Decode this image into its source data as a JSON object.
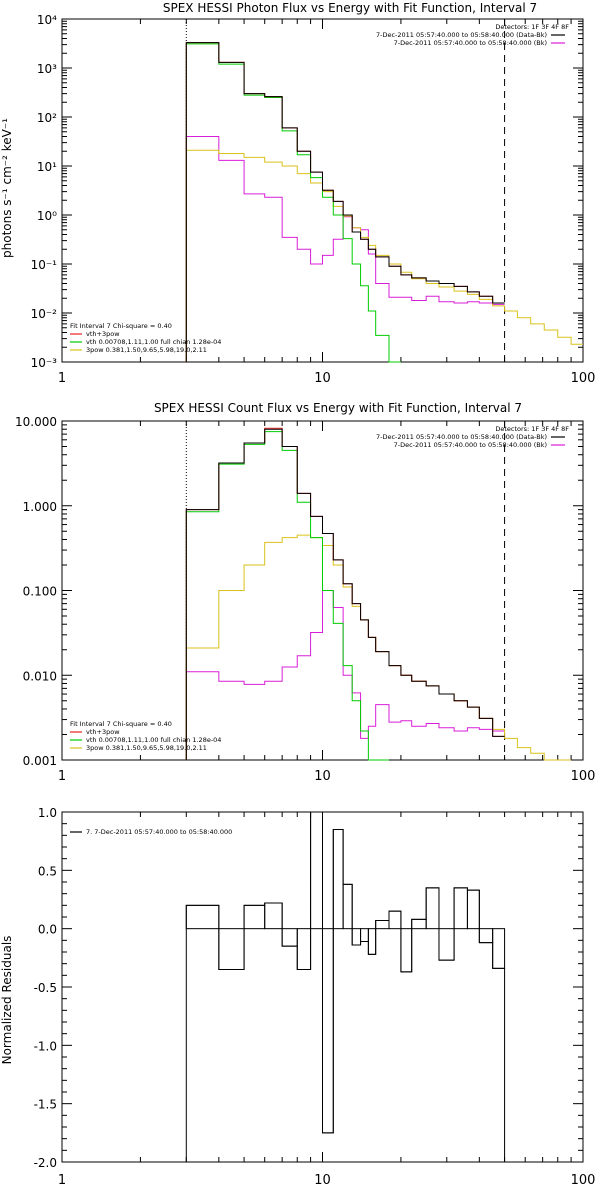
{
  "colors": {
    "data": "#000000",
    "total": "#e8211e",
    "thermal": "#00cc00",
    "powerlaw": "#d9c21a",
    "background": "#d91ed9"
  },
  "chart_data": [
    {
      "type": "line",
      "title": "SPEX HESSI Photon Flux vs Energy with Fit Function, Interval 7",
      "ylabel": "photons s⁻¹ cm⁻² keV⁻¹",
      "xlabel": "",
      "x_scale": "log",
      "y_scale": "log",
      "xlim": [
        1,
        100
      ],
      "ylim": [
        0.001,
        10000
      ],
      "x_ticks": [
        1,
        10,
        100
      ],
      "x_tick_labels": [
        "1",
        "10",
        "100"
      ],
      "y_ticks": [
        0.001,
        0.01,
        0.1,
        1,
        10,
        100,
        1000,
        10000
      ],
      "y_tick_labels": [
        "10⁻³",
        "10⁻²",
        "10⁻¹",
        "10⁰",
        "10¹",
        "10²",
        "10³",
        "10⁴"
      ],
      "fit_range": [
        3,
        50
      ],
      "legend_top": {
        "position": "top-right",
        "header": "Detectors: 1F 3F 4F 8F",
        "entries": [
          {
            "text": "7-Dec-2011 05:57:40.000 to 05:58:40.000 (Data-Bk)",
            "color": "#000000"
          },
          {
            "text": "7-Dec-2011 05:57:40.000 to 05:58:40.000 (Bk)",
            "color": "#d91ed9"
          }
        ]
      },
      "legend_bottom": {
        "position": "bottom-left",
        "header": "Fit Interval  7   Chi-square = 0.40",
        "entries": [
          {
            "text": "vth+3pow",
            "color": "#e8211e"
          },
          {
            "text": "vth 0.00708,1.11,1.00  full chian 1.28e-04",
            "color": "#00cc00"
          },
          {
            "text": "3pow 0.381,1.50,9.65,5.98,19.0,2.11",
            "color": "#d9c21a"
          }
        ]
      },
      "bin_edges": [
        3,
        4,
        5,
        6,
        7,
        8,
        9,
        10,
        11,
        12,
        13,
        14,
        15,
        16,
        18,
        20,
        22,
        25,
        28,
        32,
        36,
        40,
        45,
        50,
        56,
        63,
        71,
        80,
        90,
        100
      ],
      "series": [
        {
          "key": "data",
          "color": "#000000",
          "end_edge": 50,
          "values": [
            3300,
            1300,
            300,
            260,
            60,
            20,
            7.5,
            3.2,
            1.9,
            1.0,
            0.45,
            0.32,
            0.2,
            0.14,
            0.09,
            0.06,
            0.052,
            0.045,
            0.04,
            0.035,
            0.027,
            0.022,
            0.016
          ]
        },
        {
          "key": "total",
          "color": "#e8211e",
          "end_edge": 50,
          "values": [
            3300,
            1300,
            300,
            260,
            60,
            20,
            7.5,
            3.2,
            1.9,
            1.0,
            0.45,
            0.32,
            0.2,
            0.14,
            0.09,
            0.06,
            0.052,
            0.045,
            0.04,
            0.035,
            0.027,
            0.022,
            0.016
          ]
        },
        {
          "key": "thermal",
          "color": "#00cc00",
          "end_edge": 18,
          "values": [
            3100,
            1200,
            280,
            250,
            52,
            17,
            5.8,
            2.3,
            1.0,
            0.33,
            0.1,
            0.036,
            0.011,
            0.0035,
            0.001
          ]
        },
        {
          "key": "powerlaw",
          "color": "#d9c21a",
          "end_edge": 100,
          "values": [
            21,
            18,
            15,
            12,
            10,
            7,
            4.5,
            3,
            1.5,
            0.95,
            0.55,
            0.35,
            0.24,
            0.15,
            0.1,
            0.068,
            0.05,
            0.04,
            0.034,
            0.028,
            0.024,
            0.019,
            0.014,
            0.011,
            0.008,
            0.006,
            0.0045,
            0.0032,
            0.0023
          ]
        },
        {
          "key": "background",
          "color": "#d91ed9",
          "end_edge": 50,
          "values": [
            40,
            13,
            2.7,
            2.3,
            0.35,
            0.2,
            0.1,
            0.15,
            0.32,
            0.92,
            0.55,
            0.5,
            0.16,
            0.04,
            0.021,
            0.021,
            0.018,
            0.022,
            0.017,
            0.016,
            0.017,
            0.016,
            0.015
          ]
        }
      ]
    },
    {
      "type": "line",
      "title": "SPEX HESSI Count Flux vs Energy with Fit Function, Interval 7",
      "ylabel": "",
      "xlabel": "",
      "x_scale": "log",
      "y_scale": "log",
      "xlim": [
        1,
        100
      ],
      "ylim": [
        0.001,
        10
      ],
      "x_ticks": [
        1,
        10,
        100
      ],
      "x_tick_labels": [
        "1",
        "10",
        "100"
      ],
      "y_ticks": [
        0.001,
        0.01,
        0.1,
        1,
        10
      ],
      "y_tick_labels": [
        "0.001",
        "0.010",
        "0.100",
        "1.000",
        "10.000"
      ],
      "fit_range": [
        3,
        50
      ],
      "legend_top": {
        "position": "top-right",
        "header": "Detectors: 1F 3F 4F 8F",
        "entries": [
          {
            "text": "7-Dec-2011 05:57:40.000 to 05:58:40.000 (Data-Bk)",
            "color": "#000000"
          },
          {
            "text": "7-Dec-2011 05:57:40.000 to 05:58:40.000 (Bk)",
            "color": "#d91ed9"
          }
        ]
      },
      "legend_bottom": {
        "position": "bottom-left",
        "header": "Fit Interval  7   Chi-square = 0.40",
        "entries": [
          {
            "text": "vth+3pow",
            "color": "#e8211e"
          },
          {
            "text": "vth 0.00708,1.11,1.00  full chian 1.28e-04",
            "color": "#00cc00"
          },
          {
            "text": "3pow 0.381,1.50,9.65,5.98,19.0,2.11",
            "color": "#d9c21a"
          }
        ]
      },
      "bin_edges": [
        3,
        4,
        5,
        6,
        7,
        8,
        9,
        10,
        11,
        12,
        13,
        14,
        15,
        16,
        18,
        20,
        22,
        25,
        28,
        32,
        36,
        40,
        45,
        50,
        56,
        63,
        71,
        80,
        90,
        100
      ],
      "series": [
        {
          "key": "data",
          "color": "#000000",
          "end_edge": 50,
          "values": [
            0.9,
            3.2,
            5.5,
            8.0,
            5.0,
            1.4,
            0.75,
            0.47,
            0.23,
            0.12,
            0.07,
            0.045,
            0.028,
            0.019,
            0.013,
            0.01,
            0.0085,
            0.0075,
            0.006,
            0.005,
            0.0042,
            0.0031,
            0.0019
          ]
        },
        {
          "key": "total",
          "color": "#e8211e",
          "end_edge": 50,
          "values": [
            0.9,
            3.2,
            5.5,
            8.2,
            5.0,
            1.4,
            0.75,
            0.47,
            0.23,
            0.12,
            0.07,
            0.045,
            0.028,
            0.019,
            0.013,
            0.01,
            0.0085,
            0.0075,
            0.006,
            0.005,
            0.0042,
            0.0031,
            0.0019
          ]
        },
        {
          "key": "thermal",
          "color": "#00cc00",
          "end_edge": 18,
          "values": [
            0.85,
            3.1,
            5.3,
            7.5,
            4.5,
            1.1,
            0.42,
            0.1,
            0.041,
            0.013,
            0.005,
            0.0022,
            0.001,
            0.0009
          ]
        },
        {
          "key": "powerlaw",
          "color": "#d9c21a",
          "end_edge": 90,
          "values": [
            0.021,
            0.1,
            0.2,
            0.37,
            0.42,
            0.45,
            0.42,
            0.34,
            0.2,
            0.11,
            0.065,
            0.045,
            0.028,
            0.019,
            0.013,
            0.01,
            0.0085,
            0.0075,
            0.006,
            0.005,
            0.0042,
            0.0031,
            0.0023,
            0.0018,
            0.0014,
            0.0012,
            0.001,
            0.0009
          ]
        },
        {
          "key": "background",
          "color": "#d91ed9",
          "end_edge": 50,
          "values": [
            0.011,
            0.0085,
            0.0078,
            0.0085,
            0.0125,
            0.017,
            0.032,
            0.1,
            0.063,
            0.01,
            0.0062,
            0.0018,
            0.0025,
            0.0045,
            0.0028,
            0.0029,
            0.0025,
            0.0027,
            0.0024,
            0.0022,
            0.0024,
            0.0023,
            0.0022
          ]
        }
      ]
    },
    {
      "type": "line",
      "title": "",
      "ylabel": "Normalized Residuals",
      "xlabel": "",
      "x_scale": "log",
      "y_scale": "linear",
      "xlim": [
        1,
        100
      ],
      "ylim": [
        -2.0,
        1.0
      ],
      "x_ticks": [
        1,
        10,
        100
      ],
      "x_tick_labels": [
        "1",
        "10",
        "100"
      ],
      "y_ticks": [
        -2.0,
        -1.5,
        -1.0,
        -0.5,
        0.0,
        0.5,
        1.0
      ],
      "y_tick_labels": [
        "-2.0",
        "-1.5",
        "-1.0",
        "-0.5",
        "0.0",
        "0.5",
        "1.0"
      ],
      "legend_top": {
        "position": "top-left",
        "header": "",
        "entries": [
          {
            "text": "7.  7-Dec-2011 05:57:40.000 to 05:58:40.000",
            "color": "#000000"
          }
        ]
      },
      "bin_edges": [
        3,
        4,
        5,
        6,
        7,
        8,
        9,
        10,
        11,
        12,
        13,
        14,
        15,
        16,
        18,
        20,
        22,
        25,
        28,
        32,
        36,
        40,
        45,
        50
      ],
      "series": [
        {
          "key": "residuals",
          "color": "#000000",
          "end_edge": 50,
          "values": [
            0.2,
            -0.35,
            0.2,
            0.22,
            -0.15,
            -0.35,
            1.0,
            -1.75,
            0.85,
            0.38,
            -0.14,
            -0.11,
            -0.22,
            0.07,
            0.15,
            -0.37,
            0.08,
            0.35,
            -0.27,
            0.35,
            0.33,
            -0.12,
            -0.34
          ]
        }
      ]
    }
  ]
}
